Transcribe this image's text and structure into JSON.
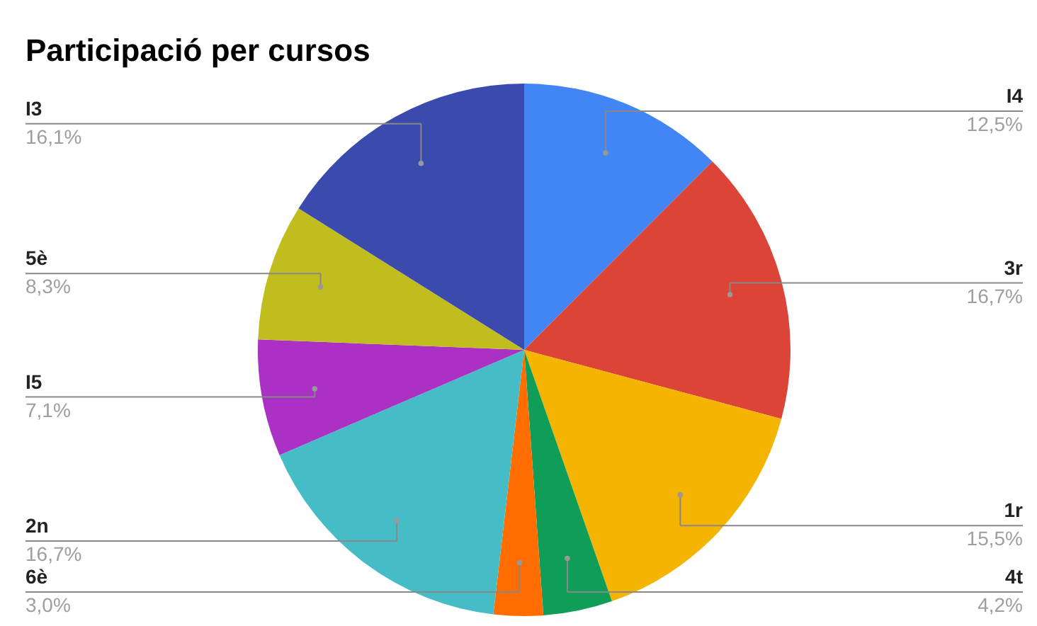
{
  "chart_data": {
    "type": "pie",
    "title": "Participació per cursos",
    "categories": [
      "I4",
      "3r",
      "1r",
      "4t",
      "6è",
      "2n",
      "I5",
      "5è",
      "I3"
    ],
    "values": [
      12.5,
      16.7,
      15.5,
      4.2,
      3.0,
      16.7,
      7.1,
      8.3,
      16.1
    ],
    "colors": [
      "#4285f4",
      "#db4437",
      "#f4b400",
      "#0f9d58",
      "#ff6d00",
      "#46bdc6",
      "#ab30c4",
      "#c2bd1f",
      "#3b4aad"
    ],
    "value_labels": [
      "12,5%",
      "16,7%",
      "15,5%",
      "4,2%",
      "3,0%",
      "16,7%",
      "7,1%",
      "8,3%",
      "16,1%"
    ]
  }
}
